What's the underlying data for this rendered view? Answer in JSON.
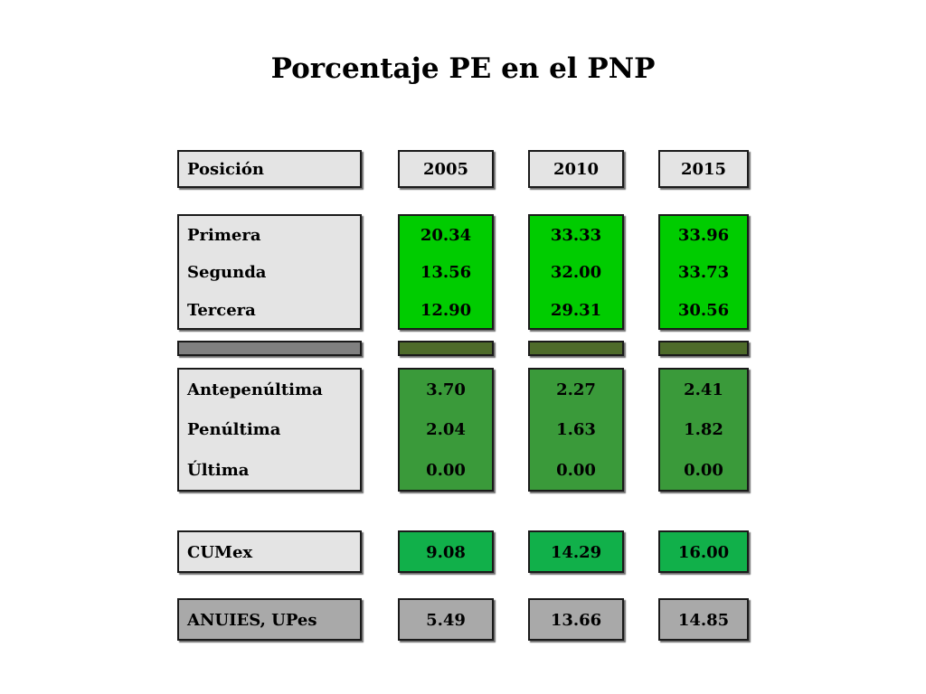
{
  "title": "Porcentaje PE en el PNP",
  "header": {
    "label": "Posición",
    "years": [
      "2005",
      "2010",
      "2015"
    ]
  },
  "top_group": {
    "rows": [
      {
        "label": "Primera",
        "values": [
          "20.34",
          "33.33",
          "33.96"
        ]
      },
      {
        "label": "Segunda",
        "values": [
          "13.56",
          "32.00",
          "33.73"
        ]
      },
      {
        "label": "Tercera",
        "values": [
          "12.90",
          "29.31",
          "30.56"
        ]
      }
    ]
  },
  "bottom_group": {
    "rows": [
      {
        "label": "Antepenúltima",
        "values": [
          "3.70",
          "2.27",
          "2.41"
        ]
      },
      {
        "label": "Penúltima",
        "values": [
          "2.04",
          "1.63",
          "1.82"
        ]
      },
      {
        "label": "Última",
        "values": [
          "0.00",
          "0.00",
          "0.00"
        ]
      }
    ]
  },
  "cumex": {
    "label": "CUMex",
    "values": [
      "9.08",
      "14.29",
      "16.00"
    ]
  },
  "anuies": {
    "label": "ANUIES, UPes",
    "values": [
      "5.49",
      "13.66",
      "14.85"
    ]
  },
  "colors": {
    "top_group_fill": "#00cc00",
    "bottom_group_fill": "#3a9a3a",
    "cumex_fill": "#11b04a",
    "anuies_fill": "#a9a9a9",
    "label_fill": "#e4e4e4",
    "separator_fill": "#4e6b2a"
  }
}
